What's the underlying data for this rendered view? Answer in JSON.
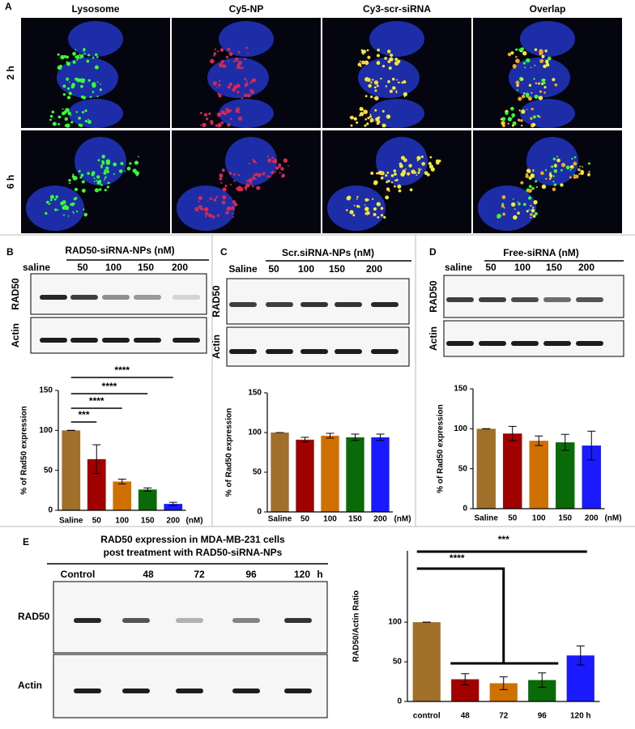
{
  "panel_a": {
    "label": "A",
    "columns": [
      "Lysosome",
      "Cy5-NP",
      "Cy3-scr-siRNA",
      "Overlap"
    ],
    "rows": [
      "2 h",
      "6 h"
    ]
  },
  "blots": [
    {
      "label": "B",
      "header": "RAD50-siRNA-NPs (nM)",
      "lanes": [
        "saline",
        "50",
        "100",
        "150",
        "200"
      ],
      "rows": [
        "RAD50",
        "Actin"
      ]
    },
    {
      "label": "C",
      "header": "Scr.siRNA-NPs (nM)",
      "lanes": [
        "Saline",
        "50",
        "100",
        "150",
        "200"
      ],
      "rows": [
        "RAD50",
        "Actin"
      ]
    },
    {
      "label": "D",
      "header": "Free-siRNA (nM)",
      "lanes": [
        "saline",
        "50",
        "100",
        "150",
        "200"
      ],
      "rows": [
        "RAD50",
        "Actin"
      ]
    },
    {
      "label": "E",
      "header": [
        "RAD50 expression in MDA-MB-231 cells",
        "post  treatment with RAD50-siRNA-NPs"
      ],
      "lanes": [
        "Control",
        "48",
        "72",
        "96",
        "120",
        "h"
      ],
      "rows": [
        "RAD50",
        "Actin"
      ]
    }
  ],
  "chart_data": [
    {
      "type": "bar",
      "ylabel": "% of Rad50 expression",
      "categories": [
        "Saline",
        "50",
        "100",
        "150",
        "200"
      ],
      "x_unit": "(nM)",
      "values": [
        100,
        64,
        36,
        26,
        8
      ],
      "errors": [
        0,
        18,
        3,
        2,
        2
      ],
      "colors": [
        "#a0702a",
        "#a00000",
        "#d07000",
        "#0a6a0a",
        "#1a1aff"
      ],
      "ylim": [
        0,
        150
      ],
      "yticks": [
        0,
        50,
        100,
        150
      ],
      "significance": [
        "***",
        "****",
        "****",
        "****"
      ]
    },
    {
      "type": "bar",
      "ylabel": "% of Rad50 expression",
      "categories": [
        "Saline",
        "50",
        "100",
        "150",
        "200"
      ],
      "x_unit": "(nM)",
      "values": [
        100,
        91,
        96,
        94,
        94
      ],
      "errors": [
        0,
        3,
        3,
        4,
        4
      ],
      "colors": [
        "#a0702a",
        "#a00000",
        "#d07000",
        "#0a6a0a",
        "#1a1aff"
      ],
      "ylim": [
        0,
        150
      ],
      "yticks": [
        0,
        50,
        100,
        150
      ]
    },
    {
      "type": "bar",
      "ylabel": "% of Rad50 expression",
      "categories": [
        "Saline",
        "50",
        "100",
        "150",
        "200"
      ],
      "x_unit": "(nM)",
      "values": [
        100,
        94,
        85,
        83,
        79
      ],
      "errors": [
        0,
        9,
        6,
        10,
        18
      ],
      "colors": [
        "#a0702a",
        "#a00000",
        "#d07000",
        "#0a6a0a",
        "#1a1aff"
      ],
      "ylim": [
        0,
        150
      ],
      "yticks": [
        0,
        50,
        100,
        150
      ]
    },
    {
      "type": "bar",
      "ylabel": "RAD50/Actin Ratio",
      "categories": [
        "control",
        "48",
        "72",
        "96",
        "120 h"
      ],
      "values": [
        100,
        28,
        23,
        27,
        58
      ],
      "errors": [
        0,
        7,
        8,
        9,
        12
      ],
      "colors": [
        "#a0702a",
        "#a00000",
        "#d07000",
        "#0a6a0a",
        "#1a1aff"
      ],
      "ylim": [
        0,
        190
      ],
      "yticks": [
        0,
        50,
        100
      ],
      "significance": [
        "****",
        "***"
      ]
    }
  ]
}
